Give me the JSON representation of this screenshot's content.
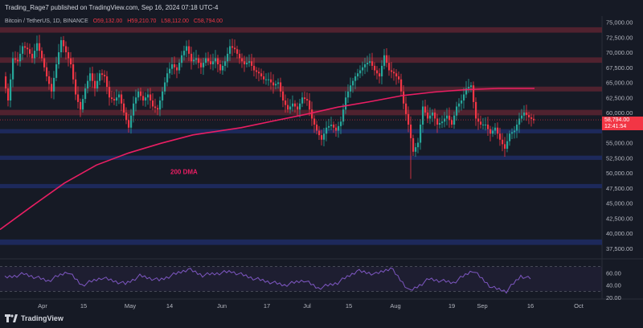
{
  "header": {
    "publish_text": "Trading_Rage7 published on TradingView.com, Sep 16, 2024 07:18 UTC-4"
  },
  "symbol": {
    "name": "Bitcoin / TetherUS, 1D, BINANCE",
    "open": "O59,132.00",
    "high": "H59,210.70",
    "low": "L58,112.00",
    "close": "C58,794.00"
  },
  "price_axis": {
    "labels": [
      "75,000.00",
      "72,500.00",
      "70,000.00",
      "67,500.00",
      "65,000.00",
      "62,500.00",
      "60,000.00",
      "55,000.00",
      "52,500.00",
      "50,000.00",
      "47,500.00",
      "45,000.00",
      "42,500.00",
      "40,000.00",
      "37,500.00"
    ],
    "current_price": "58,794.00",
    "countdown": "12:41:54"
  },
  "rsi_axis": {
    "labels": [
      "60.00",
      "40.00",
      "20.00"
    ]
  },
  "time_axis": {
    "labels": [
      "Apr",
      "15",
      "May",
      "14",
      "Jun",
      "17",
      "Jul",
      "15",
      "Aug",
      "19",
      "Sep",
      "16",
      "Oct"
    ]
  },
  "annotation": {
    "label": "200 DMA"
  },
  "footer": {
    "brand": "TradingView"
  },
  "colors": {
    "background": "#161a25",
    "up": "#26a69a",
    "down": "#f23645",
    "resistance_zone": "#5b2431",
    "support_zone": "#1e2b62",
    "dma": "#e91e63",
    "rsi": "#7e57c2"
  },
  "chart_data": {
    "type": "candlestick",
    "y_range": [
      36000,
      76000
    ],
    "resistance_levels": [
      {
        "center": 73700,
        "half_width": 450
      },
      {
        "center": 68700,
        "half_width": 450
      },
      {
        "center": 63900,
        "half_width": 400
      },
      {
        "center": 60000,
        "half_width": 450
      }
    ],
    "support_levels": [
      {
        "center": 56900,
        "half_width": 350
      },
      {
        "center": 52500,
        "half_width": 350
      },
      {
        "center": 47800,
        "half_width": 350
      },
      {
        "center": 38500,
        "half_width": 450
      }
    ],
    "dma_200": [
      [
        0,
        40600
      ],
      [
        40,
        44500
      ],
      [
        80,
        48300
      ],
      [
        120,
        51300
      ],
      [
        160,
        53300
      ],
      [
        200,
        54900
      ],
      [
        240,
        56300
      ],
      [
        260,
        56700
      ],
      [
        300,
        57500
      ],
      [
        340,
        58600
      ],
      [
        380,
        59700
      ],
      [
        420,
        60900
      ],
      [
        460,
        61800
      ],
      [
        500,
        62800
      ],
      [
        540,
        63400
      ],
      [
        580,
        63800
      ],
      [
        620,
        64000
      ],
      [
        665,
        64000
      ]
    ],
    "price_path": [
      [
        6,
        66000
      ],
      [
        12,
        62000
      ],
      [
        18,
        69000
      ],
      [
        24,
        68500
      ],
      [
        30,
        71000
      ],
      [
        36,
        70500
      ],
      [
        42,
        69000
      ],
      [
        48,
        71500
      ],
      [
        54,
        69000
      ],
      [
        60,
        66000
      ],
      [
        66,
        63500
      ],
      [
        72,
        68000
      ],
      [
        78,
        72000
      ],
      [
        84,
        70000
      ],
      [
        90,
        68000
      ],
      [
        96,
        63000
      ],
      [
        102,
        60500
      ],
      [
        108,
        64000
      ],
      [
        114,
        66500
      ],
      [
        120,
        64000
      ],
      [
        126,
        66500
      ],
      [
        132,
        66000
      ],
      [
        138,
        62500
      ],
      [
        144,
        62000
      ],
      [
        150,
        63000
      ],
      [
        156,
        60000
      ],
      [
        162,
        57500
      ],
      [
        168,
        61500
      ],
      [
        174,
        63500
      ],
      [
        180,
        62000
      ],
      [
        186,
        63000
      ],
      [
        192,
        61000
      ],
      [
        198,
        60500
      ],
      [
        204,
        63500
      ],
      [
        210,
        66500
      ],
      [
        216,
        68000
      ],
      [
        222,
        67000
      ],
      [
        228,
        69500
      ],
      [
        234,
        71000
      ],
      [
        240,
        68500
      ],
      [
        246,
        69000
      ],
      [
        252,
        67500
      ],
      [
        258,
        69000
      ],
      [
        264,
        68000
      ],
      [
        270,
        69000
      ],
      [
        276,
        67000
      ],
      [
        282,
        68500
      ],
      [
        288,
        71000
      ],
      [
        294,
        70500
      ],
      [
        300,
        69000
      ],
      [
        306,
        68000
      ],
      [
        312,
        68500
      ],
      [
        318,
        67000
      ],
      [
        324,
        66500
      ],
      [
        330,
        65500
      ],
      [
        336,
        65500
      ],
      [
        342,
        64500
      ],
      [
        348,
        65000
      ],
      [
        354,
        62000
      ],
      [
        360,
        60500
      ],
      [
        366,
        61500
      ],
      [
        372,
        60500
      ],
      [
        378,
        62500
      ],
      [
        384,
        62000
      ],
      [
        390,
        59000
      ],
      [
        396,
        57000
      ],
      [
        402,
        55500
      ],
      [
        408,
        57500
      ],
      [
        414,
        58000
      ],
      [
        420,
        57000
      ],
      [
        426,
        58500
      ],
      [
        432,
        62500
      ],
      [
        438,
        64500
      ],
      [
        444,
        66000
      ],
      [
        450,
        67000
      ],
      [
        456,
        68000
      ],
      [
        462,
        68500
      ],
      [
        468,
        67000
      ],
      [
        474,
        66000
      ],
      [
        480,
        69500
      ],
      [
        486,
        67000
      ],
      [
        492,
        66500
      ],
      [
        498,
        65500
      ],
      [
        504,
        61500
      ],
      [
        510,
        58000
      ],
      [
        516,
        53500
      ],
      [
        522,
        55000
      ],
      [
        528,
        61000
      ],
      [
        534,
        59000
      ],
      [
        540,
        60000
      ],
      [
        546,
        58000
      ],
      [
        552,
        58500
      ],
      [
        558,
        59500
      ],
      [
        564,
        58000
      ],
      [
        570,
        61000
      ],
      [
        576,
        62000
      ],
      [
        582,
        64000
      ],
      [
        588,
        64500
      ],
      [
        594,
        59000
      ],
      [
        600,
        58000
      ],
      [
        606,
        58000
      ],
      [
        612,
        56500
      ],
      [
        618,
        57500
      ],
      [
        624,
        55500
      ],
      [
        630,
        54000
      ],
      [
        636,
        56500
      ],
      [
        642,
        57000
      ],
      [
        648,
        59000
      ],
      [
        654,
        60000
      ],
      [
        660,
        59200
      ],
      [
        665,
        58794
      ]
    ],
    "rsi_range": [
      20,
      80
    ],
    "rsi_path": [
      [
        6,
        52
      ],
      [
        30,
        58
      ],
      [
        60,
        47
      ],
      [
        84,
        62
      ],
      [
        102,
        40
      ],
      [
        126,
        52
      ],
      [
        156,
        42
      ],
      [
        174,
        55
      ],
      [
        198,
        48
      ],
      [
        234,
        66
      ],
      [
        252,
        56
      ],
      [
        288,
        62
      ],
      [
        318,
        50
      ],
      [
        354,
        40
      ],
      [
        378,
        48
      ],
      [
        396,
        35
      ],
      [
        420,
        44
      ],
      [
        444,
        63
      ],
      [
        468,
        58
      ],
      [
        486,
        68
      ],
      [
        510,
        30
      ],
      [
        534,
        50
      ],
      [
        564,
        44
      ],
      [
        588,
        64
      ],
      [
        612,
        36
      ],
      [
        630,
        30
      ],
      [
        648,
        55
      ],
      [
        660,
        50
      ]
    ]
  }
}
